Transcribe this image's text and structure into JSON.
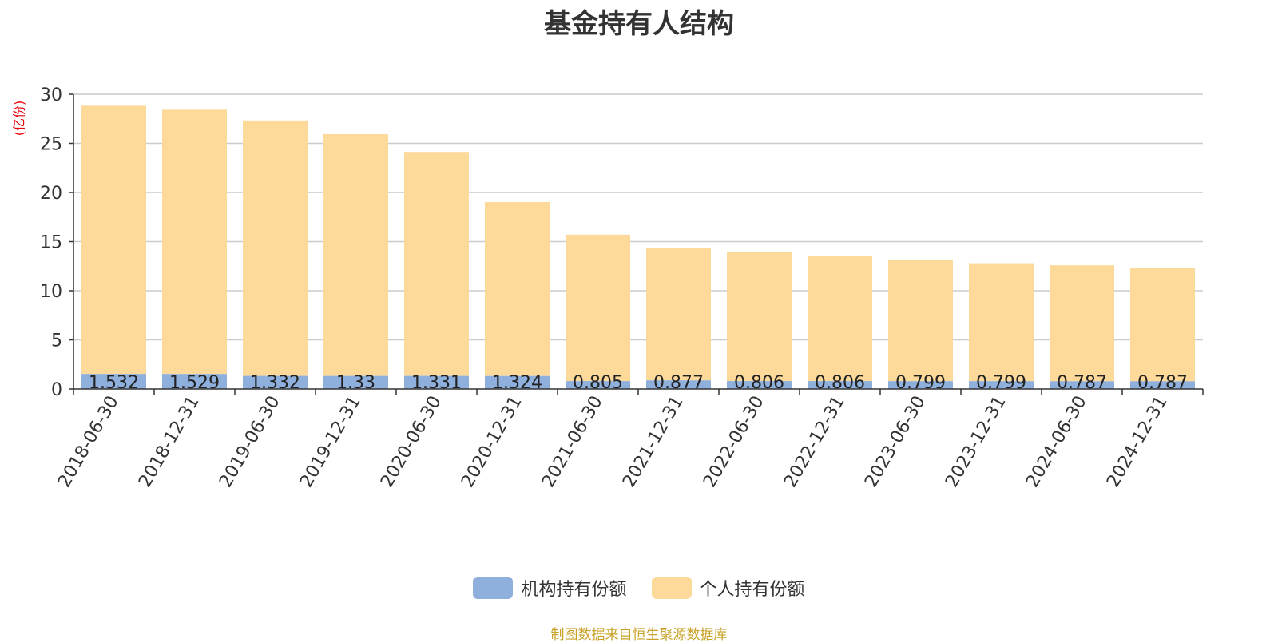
{
  "title": "基金持有人结构",
  "unit_label": "(亿份)",
  "source": "制图数据来自恒生聚源数据库",
  "colors": {
    "institutional": "#8fb0dc",
    "individual": "#fdd99a",
    "grid": "#cccccc",
    "axis": "#333333"
  },
  "chart_data": {
    "type": "bar",
    "stacked": true,
    "categories": [
      "2018-06-30",
      "2018-12-31",
      "2019-06-30",
      "2019-12-31",
      "2020-06-30",
      "2020-12-31",
      "2021-06-30",
      "2021-12-31",
      "2022-06-30",
      "2022-12-31",
      "2023-06-30",
      "2023-12-31",
      "2024-06-30",
      "2024-12-31"
    ],
    "series": [
      {
        "name": "机构持有份额",
        "values": [
          1.532,
          1.529,
          1.332,
          1.33,
          1.331,
          1.324,
          0.805,
          0.877,
          0.806,
          0.806,
          0.799,
          0.799,
          0.787,
          0.787
        ],
        "data_labels": [
          "1.532",
          "1.529",
          "1.332",
          "1.33",
          "1.331",
          "1.324",
          "0.805",
          "0.877",
          "0.806",
          "0.806",
          "0.799",
          "0.799",
          "0.787",
          "0.787"
        ]
      },
      {
        "name": "个人持有份额",
        "values": [
          27.3,
          26.9,
          26.0,
          24.6,
          22.8,
          17.7,
          14.9,
          13.5,
          13.1,
          12.7,
          12.3,
          12.0,
          11.8,
          11.5
        ]
      }
    ],
    "ylim": [
      0,
      30
    ],
    "yticks": [
      0,
      5,
      10,
      15,
      20,
      25,
      30
    ],
    "grid": true,
    "legend_position": "bottom-center"
  }
}
